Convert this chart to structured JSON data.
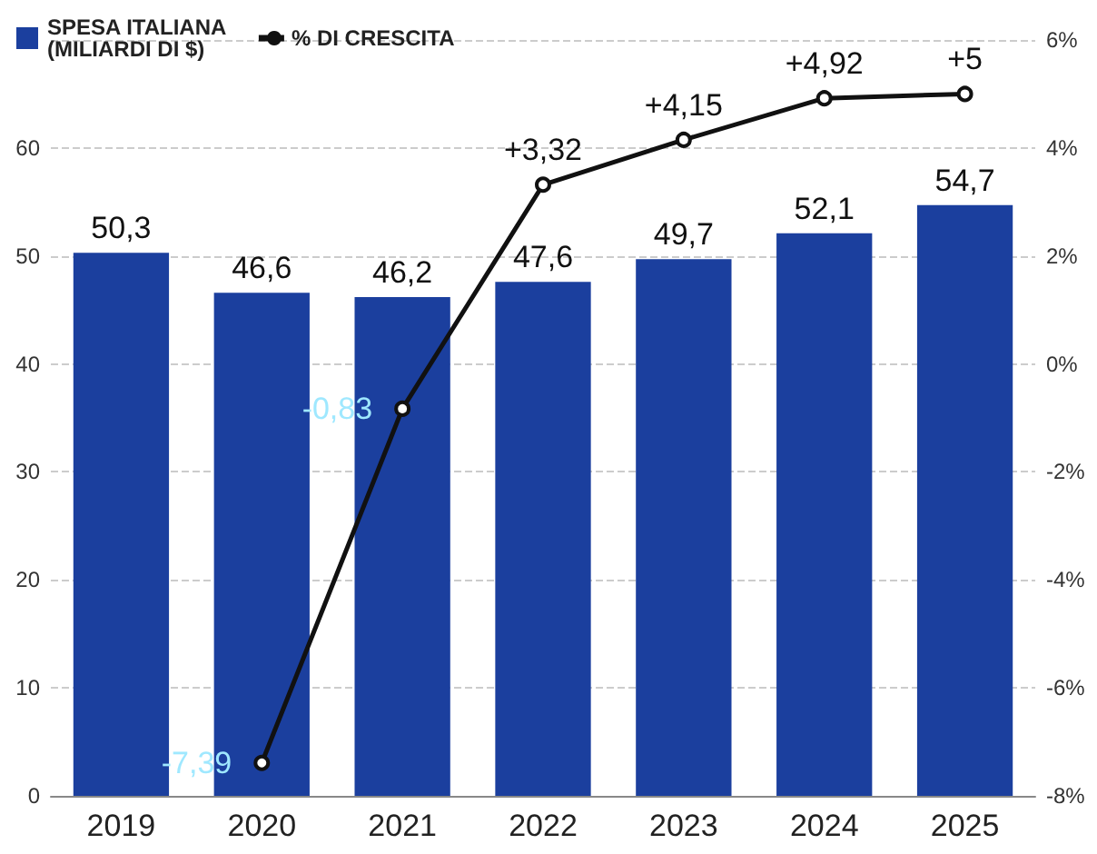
{
  "chart_data": {
    "type": "bar",
    "categories": [
      "2019",
      "2020",
      "2021",
      "2022",
      "2023",
      "2024",
      "2025"
    ],
    "series": [
      {
        "name": "SPESA ITALIANA (MILIARDI DI $)",
        "color": "#1b3f9e",
        "values": [
          50.3,
          46.6,
          46.2,
          47.6,
          49.7,
          52.1,
          54.7
        ],
        "value_labels": [
          "50,3",
          "46,6",
          "46,2",
          "47,6",
          "49,7",
          "52,1",
          "54,7"
        ]
      },
      {
        "name": "% DI CRESCITA",
        "type": "line",
        "axis": "y2",
        "color": "#111111",
        "values": [
          null,
          -7.39,
          -0.83,
          3.32,
          4.15,
          4.92,
          5
        ],
        "value_labels": [
          null,
          "-7,39",
          "-0,83",
          "+3,32",
          "+4,15",
          "+4,92",
          "+5"
        ]
      }
    ],
    "ylim": [
      0,
      70
    ],
    "yticks": [
      0,
      10,
      20,
      30,
      40,
      50,
      60
    ],
    "y2lim": [
      -8,
      6
    ],
    "y2ticks": [
      {
        "value": -8,
        "label": "-8%"
      },
      {
        "value": -6,
        "label": "-6%"
      },
      {
        "value": -4,
        "label": "-4%"
      },
      {
        "value": -2,
        "label": "-2%"
      },
      {
        "value": 0,
        "label": "0%"
      },
      {
        "value": 2,
        "label": "2%"
      },
      {
        "value": 4,
        "label": "4%"
      },
      {
        "value": 6,
        "label": "6%"
      }
    ],
    "grid": "y",
    "legend": "top left",
    "marker": "circle",
    "line_style": "solid"
  }
}
